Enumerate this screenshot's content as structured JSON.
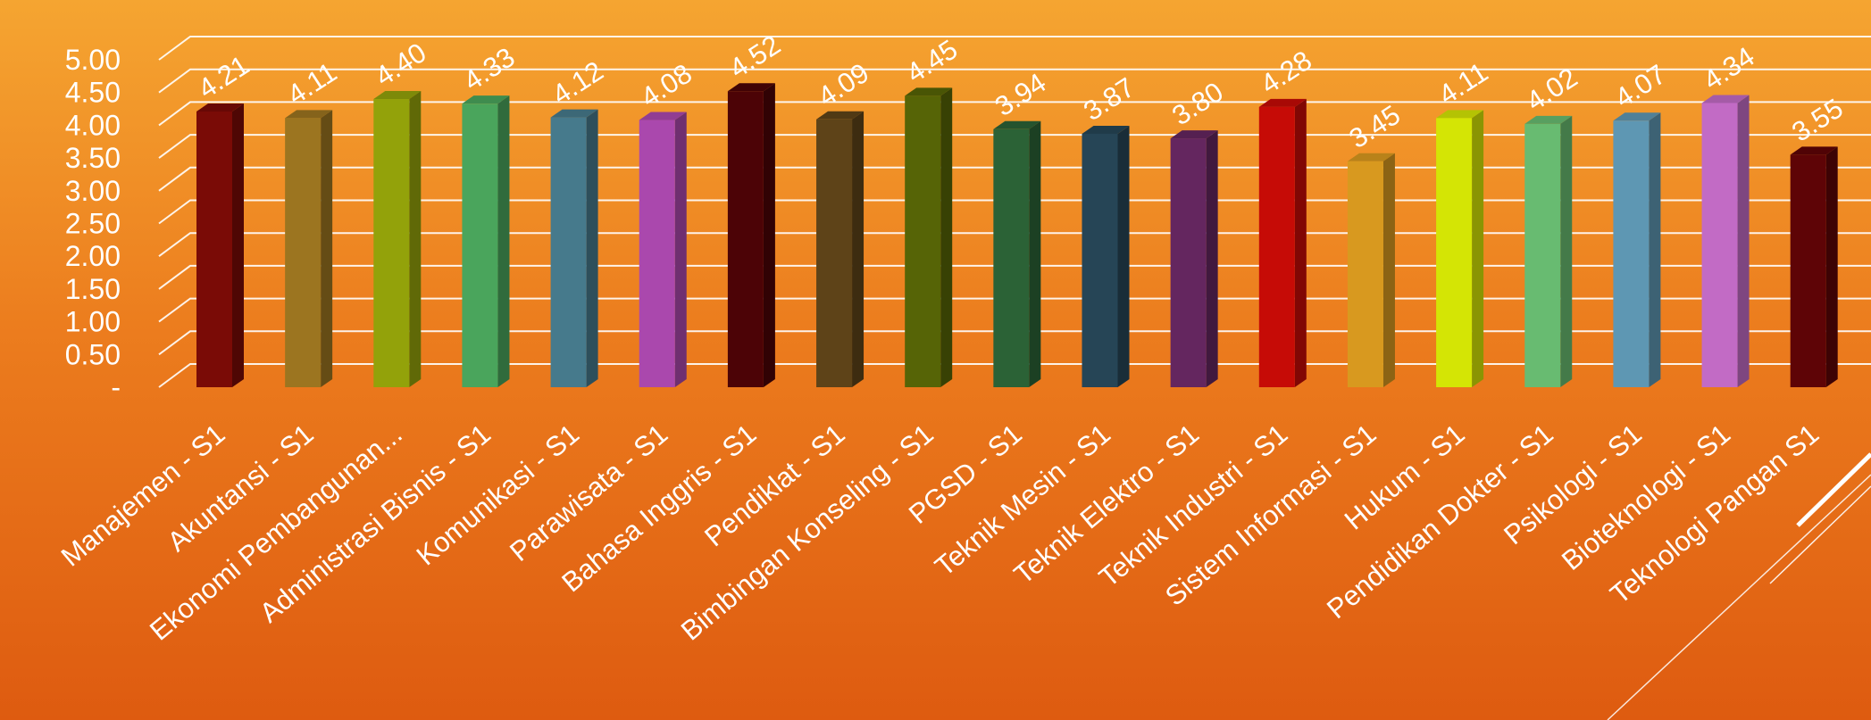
{
  "chart_data": {
    "type": "bar",
    "three_d": true,
    "categories": [
      "Manajemen - S1",
      "Akuntansi - S1",
      "Ekonomi Pembangunan...",
      "Administrasi Bisnis - S1",
      "Komunikasi - S1",
      "Parawisata - S1",
      "Bahasa Inggris - S1",
      "Pendiklat - S1",
      "Bimbingan Konseling - S1",
      "PGSD - S1",
      "Teknik Mesin - S1",
      "Teknik Elektro - S1",
      "Teknik  Industri - S1",
      "Sistem Informasi - S1",
      "Hukum - S1",
      "Pendidikan Dokter - S1",
      "Psikologi - S1",
      "Bioteknologi - S1",
      "Teknologi Pangan S1"
    ],
    "values": [
      4.21,
      4.11,
      4.4,
      4.33,
      4.12,
      4.08,
      4.52,
      4.09,
      4.45,
      3.94,
      3.87,
      3.8,
      4.28,
      3.45,
      4.11,
      4.02,
      4.07,
      4.34,
      3.55
    ],
    "data_labels": [
      "4.21",
      "4.11",
      "4.40",
      "4.33",
      "4.12",
      "4.08",
      "4.52",
      "4.09",
      "4.45",
      "3.94",
      "3.87",
      "3.80",
      "4.28",
      "3.45",
      "4.11",
      "4.02",
      "4.07",
      "4.34",
      "3.55"
    ],
    "colors": [
      "#7a0b06",
      "#9c7520",
      "#93a20a",
      "#4aa55c",
      "#467a8c",
      "#aa48ad",
      "#4c0306",
      "#5e4318",
      "#566406",
      "#2b6236",
      "#264556",
      "#64265f",
      "#c60b06",
      "#d8991f",
      "#d4e505",
      "#68bb71",
      "#5e97b3",
      "#c26bc5",
      "#5e0406"
    ],
    "y_ticks": [
      "-",
      "0.50",
      "1.00",
      "1.50",
      "2.00",
      "2.50",
      "3.00",
      "3.50",
      "4.00",
      "4.50",
      "5.00"
    ],
    "ylim": [
      0,
      5
    ],
    "grid": true,
    "title": "",
    "xlabel": "",
    "ylabel": ""
  }
}
